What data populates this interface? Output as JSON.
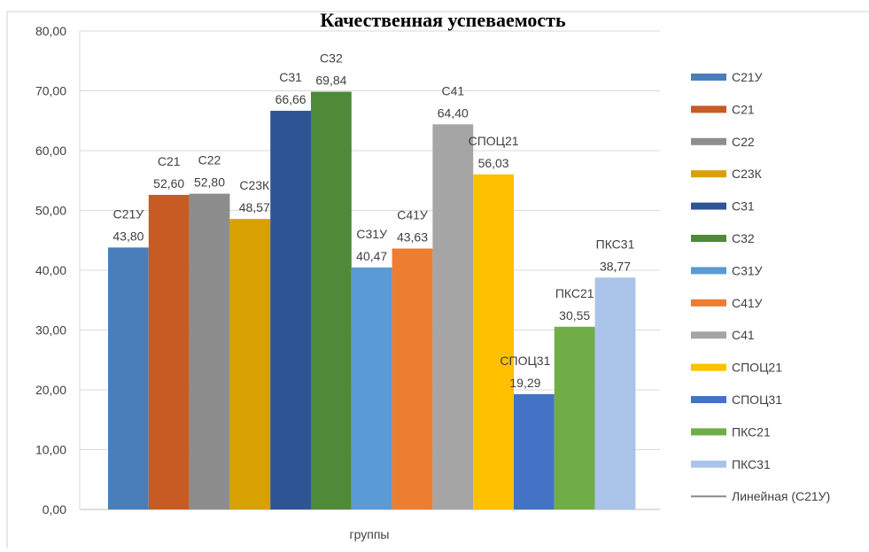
{
  "chart_data": {
    "type": "bar",
    "title": "Качественная успеваемость",
    "xlabel": "группы",
    "ylabel": "",
    "ylim": [
      0,
      80
    ],
    "yticks": [
      "0,00",
      "10,00",
      "20,00",
      "30,00",
      "40,00",
      "50,00",
      "60,00",
      "70,00",
      "80,00"
    ],
    "grid": true,
    "legend_position": "right",
    "categories": [
      "группы"
    ],
    "series": [
      {
        "name": "С21У",
        "label": "С21У",
        "value_text": "43,80",
        "value": 43.8,
        "color": "#4a7ebb"
      },
      {
        "name": "С21",
        "label": "С21",
        "value_text": "52,60",
        "value": 52.6,
        "color": "#c65c23"
      },
      {
        "name": "С22",
        "label": "С22",
        "value_text": "52,80",
        "value": 52.8,
        "color": "#8d8d8d"
      },
      {
        "name": "С23К",
        "label": "С23К",
        "value_text": "48,57",
        "value": 48.57,
        "color": "#d8a000"
      },
      {
        "name": "С31",
        "label": "С31",
        "value_text": "66,66",
        "value": 66.66,
        "color": "#2f5496"
      },
      {
        "name": "С32",
        "label": "С32",
        "value_text": "69,84",
        "value": 69.84,
        "color": "#4e8a37"
      },
      {
        "name": "С31У",
        "label": "С31У",
        "value_text": "40,47",
        "value": 40.47,
        "color": "#5b9bd5"
      },
      {
        "name": "С41У",
        "label": "С41У",
        "value_text": "43,63",
        "value": 43.63,
        "color": "#ed7d31"
      },
      {
        "name": "С41",
        "label": "С41",
        "value_text": "64,40",
        "value": 64.4,
        "color": "#a5a5a5"
      },
      {
        "name": "СПОЦ21",
        "label": "СПОЦ21",
        "value_text": "56,03",
        "value": 56.03,
        "color": "#ffc000"
      },
      {
        "name": "СПОЦ31",
        "label": "СПОЦ31",
        "value_text": "19,29",
        "value": 19.29,
        "color": "#4472c4"
      },
      {
        "name": "ПКС21",
        "label": "ПКС21",
        "value_text": "30,55",
        "value": 30.55,
        "color": "#70ad47"
      },
      {
        "name": "ПКС31",
        "label": "ПКС31",
        "value_text": "38,77",
        "value": 38.77,
        "color": "#a9c4e8"
      }
    ],
    "legend_extra": {
      "name": "Линейная (С21У)",
      "color": "#8a8a8a"
    }
  }
}
